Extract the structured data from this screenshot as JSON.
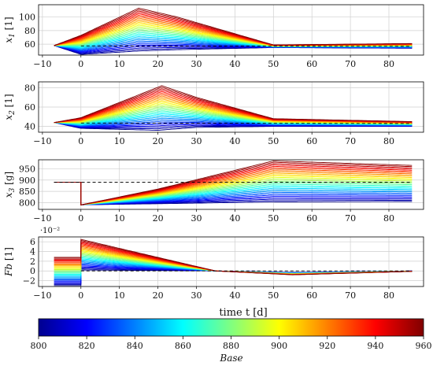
{
  "figure": {
    "xlabel": "time t [d]",
    "colorbar_label": "Base"
  },
  "colorbar": {
    "min": 800,
    "max": 960,
    "ticks": [
      "800",
      "820",
      "840",
      "860",
      "880",
      "900",
      "920",
      "940",
      "960"
    ],
    "colormap": "jet",
    "colors": [
      "#00008f",
      "#0000ff",
      "#0080ff",
      "#00ffff",
      "#80ff80",
      "#ffff00",
      "#ff8000",
      "#ff0000",
      "#800000"
    ]
  },
  "chart_data": [
    {
      "type": "line",
      "ylabel": "x1 [1]",
      "x_range": [
        -7,
        86
      ],
      "xlim": [
        -11,
        89
      ],
      "ylim": [
        44,
        118
      ],
      "xticks": [
        "−10",
        "0",
        "10",
        "20",
        "30",
        "40",
        "50",
        "60",
        "70",
        "80"
      ],
      "yticks": [
        "60",
        "80",
        "100"
      ],
      "yticks_values": [
        60,
        80,
        100
      ],
      "grid": true,
      "series_count": 31,
      "color_parameter": "Base",
      "parameter_range": [
        800,
        960
      ],
      "reference_line": {
        "style": "dashed",
        "color": "#000000",
        "value_at_end": 57
      },
      "envelope": {
        "base_start": 58,
        "low_series": {
          "x": [
            -7,
            0,
            15,
            25,
            50,
            86
          ],
          "y": [
            58,
            45,
            50,
            52,
            55,
            54
          ]
        },
        "high_series": {
          "x": [
            -7,
            0,
            15,
            25,
            50,
            86
          ],
          "y": [
            58,
            73,
            113,
            100,
            59,
            61
          ]
        }
      }
    },
    {
      "type": "line",
      "ylabel": "x2 [1]",
      "x_range": [
        -7,
        86
      ],
      "xlim": [
        -11,
        89
      ],
      "ylim": [
        34,
        86
      ],
      "xticks": [
        "−10",
        "0",
        "10",
        "20",
        "30",
        "40",
        "50",
        "60",
        "70",
        "80"
      ],
      "yticks": [
        "40",
        "60",
        "80"
      ],
      "yticks_values": [
        40,
        60,
        80
      ],
      "grid": true,
      "series_count": 31,
      "color_parameter": "Base",
      "parameter_range": [
        800,
        960
      ],
      "reference_line": {
        "style": "dashed",
        "color": "#000000",
        "value_at_end": 43
      },
      "envelope": {
        "base_start": 44,
        "low_series": {
          "x": [
            -7,
            0,
            20,
            30,
            50,
            86
          ],
          "y": [
            44,
            38,
            36,
            39,
            40,
            40
          ]
        },
        "high_series": {
          "x": [
            -7,
            0,
            21,
            30,
            50,
            86
          ],
          "y": [
            44,
            49,
            82,
            70,
            48,
            45
          ]
        }
      }
    },
    {
      "type": "line",
      "ylabel": "x3 [g]",
      "x_range": [
        -7,
        86
      ],
      "xlim": [
        -11,
        89
      ],
      "ylim": [
        770,
        990
      ],
      "xticks": [
        "−10",
        "0",
        "10",
        "20",
        "30",
        "40",
        "50",
        "60",
        "70",
        "80"
      ],
      "yticks": [
        "800",
        "850",
        "900",
        "950"
      ],
      "yticks_values": [
        800,
        850,
        900,
        950
      ],
      "grid": true,
      "series_count": 31,
      "color_parameter": "Base",
      "parameter_range": [
        800,
        960
      ],
      "reference_line": {
        "style": "dashed",
        "color": "#000000",
        "value": 890
      },
      "envelope": {
        "pre_value": 890,
        "drop_to": 790,
        "low_series": {
          "x": [
            0,
            20,
            50,
            86
          ],
          "y": [
            790,
            795,
            803,
            805
          ]
        },
        "high_series": {
          "x": [
            0,
            20,
            50,
            86
          ],
          "y": [
            790,
            860,
            985,
            965
          ]
        }
      }
    },
    {
      "type": "line",
      "ylabel": "Fb [1]",
      "scale_label": "·10⁻²",
      "x_range": [
        -7,
        86
      ],
      "xlim": [
        -11,
        89
      ],
      "ylim": [
        -3.2,
        7.0
      ],
      "xticks": [
        "−10",
        "0",
        "10",
        "20",
        "30",
        "40",
        "50",
        "60",
        "70",
        "80"
      ],
      "yticks": [
        "−2",
        "0",
        "2",
        "4",
        "6"
      ],
      "yticks_values": [
        -2,
        0,
        2,
        4,
        6
      ],
      "grid": true,
      "series_count": 31,
      "color_parameter": "Base",
      "parameter_range": [
        800,
        960
      ],
      "reference_line": {
        "style": "dashed",
        "color": "#000000",
        "value": 0
      },
      "envelope": {
        "pre_low": -3.0,
        "pre_high": 2.8,
        "low_series": {
          "x": [
            0,
            35,
            55,
            86
          ],
          "y": [
            0.2,
            0.0,
            -0.3,
            0.0
          ]
        },
        "high_series": {
          "x": [
            0,
            35,
            55,
            86
          ],
          "y": [
            6.5,
            0.0,
            -0.8,
            -0.1
          ]
        }
      }
    }
  ]
}
